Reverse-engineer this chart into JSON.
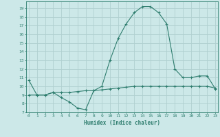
{
  "line1_x": [
    0,
    1,
    2,
    3,
    4,
    5,
    6,
    7,
    8,
    9,
    10,
    11,
    12,
    13,
    14,
    15,
    16,
    17,
    18,
    19,
    20,
    21,
    22,
    23
  ],
  "line1_y": [
    10.7,
    9.0,
    9.0,
    9.3,
    8.7,
    8.2,
    7.5,
    7.3,
    9.5,
    10.0,
    13.0,
    15.5,
    17.2,
    18.5,
    19.2,
    19.2,
    18.5,
    17.2,
    12.0,
    11.0,
    11.0,
    11.2,
    11.2,
    9.7
  ],
  "line2_x": [
    0,
    1,
    2,
    3,
    4,
    5,
    6,
    7,
    8,
    9,
    10,
    11,
    12,
    13,
    14,
    15,
    16,
    17,
    18,
    19,
    20,
    21,
    22,
    23
  ],
  "line2_y": [
    9.0,
    9.0,
    9.0,
    9.3,
    9.3,
    9.3,
    9.4,
    9.5,
    9.5,
    9.6,
    9.7,
    9.8,
    9.9,
    10.0,
    10.0,
    10.0,
    10.0,
    10.0,
    10.0,
    10.0,
    10.0,
    10.0,
    10.0,
    9.8
  ],
  "line_color": "#2e7d6e",
  "bg_color": "#cce8e8",
  "grid_color": "#b0d0d0",
  "xlabel": "Humidex (Indice chaleur)",
  "yticks": [
    7,
    8,
    9,
    10,
    11,
    12,
    13,
    14,
    15,
    16,
    17,
    18,
    19
  ],
  "xticks": [
    0,
    1,
    2,
    3,
    4,
    5,
    6,
    7,
    8,
    9,
    10,
    11,
    12,
    13,
    14,
    15,
    16,
    17,
    18,
    19,
    20,
    21,
    22,
    23
  ],
  "ylim": [
    7,
    19.8
  ],
  "xlim": [
    -0.3,
    23.3
  ]
}
